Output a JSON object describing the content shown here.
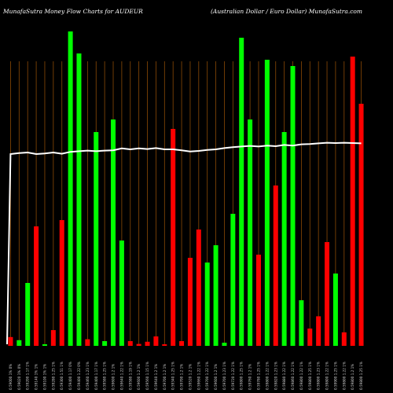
{
  "header": {
    "title_left": "MunafaSutra  Money Flow  Charts for AUDEUR",
    "title_right": "(Australian  Dollar / Euro  Dollar) MunafaSutra.com"
  },
  "colors": {
    "background": "#000000",
    "grid": "#8b4a06",
    "up": "#00ff00",
    "down": "#ff0000",
    "price_line": "#ffffff"
  },
  "chart_data": {
    "type": "bar",
    "grid": true,
    "legend": "none",
    "ylim": [
      0,
      100
    ],
    "categories": [
      "0.59000 1% 0%",
      "0.59020 1% 0%",
      "0.59200 1.17 1%",
      "0.59140 1% 1%",
      "0.59100 1% 1%",
      "0.59280 1.25 1%",
      "0.59300 1.51 1%",
      "0.59400 1.17 0%",
      "0.59400 1.22 0%",
      "0.59460 1.23 1%",
      "0.59400 1.17 1%",
      "0.59580 1.25 1%",
      "0.59600 1.2 1%",
      "0.59640 1.22 1%",
      "0.59580 1.19 1%",
      "0.59600 1.2 1%",
      "0.59560 1.15 1%",
      "0.59640 1.2 1%",
      "0.59700 1.2 1%",
      "0.59340 1.25 1%",
      "0.59700 1.2 1%",
      "0.59520 1.2 1%",
      "0.59660 1.22 1%",
      "0.59700 1.22 1%",
      "0.59600 1.2 1%",
      "0.59700 1.23 1%",
      "0.59720 1.22 1%",
      "0.59800 1.25 1%",
      "0.59760 1.2 1%",
      "0.59780 1.25 1%",
      "0.59800 1.22 1%",
      "0.59820 1.23 1%",
      "0.59880 1.22 1%",
      "0.59860 1.22 1%",
      "0.59800 1.22 1%",
      "0.59800 1.25 1%",
      "0.59800 1.23 1%",
      "0.59800 1.22 1%",
      "0.59900 1.25 1%",
      "0.59800 1.22 1%",
      "0.59800 1.2 1%",
      "0.59800 1.25 1%"
    ],
    "bar_colors": [
      "red",
      "green",
      "green",
      "red",
      "green",
      "red",
      "red",
      "green",
      "green",
      "red",
      "green",
      "green",
      "green",
      "green",
      "red",
      "red",
      "red",
      "red",
      "red",
      "red",
      "red",
      "red",
      "red",
      "green",
      "green",
      "green",
      "green",
      "green",
      "green",
      "red",
      "green",
      "red",
      "green",
      "green",
      "green",
      "red",
      "red",
      "red",
      "green",
      "red",
      "red",
      "red"
    ],
    "values": [
      2.8,
      1.8,
      20,
      38,
      0.5,
      5,
      40,
      100,
      93,
      2.1,
      68,
      1.5,
      72,
      33.5,
      1.5,
      0.6,
      1.3,
      3,
      0.5,
      69,
      1.5,
      28,
      37,
      26.5,
      32,
      1,
      42,
      98,
      72,
      29,
      91,
      51,
      68,
      89,
      14.5,
      5.5,
      9.4,
      33,
      23,
      4.3,
      92,
      77
    ],
    "price_line": [
      61,
      61.3,
      61.5,
      61,
      61.2,
      61.5,
      61.1,
      61.7,
      61.9,
      62.1,
      61.9,
      62.1,
      62.2,
      62.8,
      62.5,
      62.8,
      62.6,
      62.9,
      62.5,
      62.5,
      62.2,
      61.8,
      62,
      62.3,
      62.5,
      62.9,
      63.2,
      63.4,
      63.6,
      63.4,
      63.7,
      63.5,
      63.9,
      63.7,
      64.1,
      64.2,
      64.4,
      64.6,
      64.5,
      64.6,
      64.5,
      64.4
    ]
  }
}
